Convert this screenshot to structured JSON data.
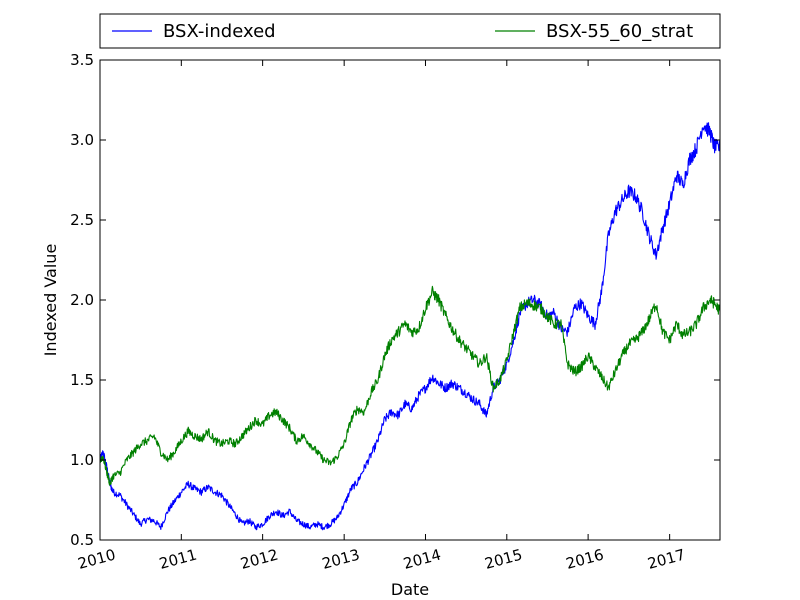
{
  "chart_data": {
    "type": "line",
    "title": "",
    "xlabel": "Date",
    "ylabel": "Indexed Value",
    "xlim": [
      "2010-01-01",
      "2017-08-15"
    ],
    "ylim": [
      0.5,
      3.5
    ],
    "x_ticks": [
      "2010",
      "2011",
      "2012",
      "2013",
      "2014",
      "2015",
      "2016",
      "2017"
    ],
    "y_ticks": [
      "0.5",
      "1.0",
      "1.5",
      "2.0",
      "2.5",
      "3.0",
      "3.5"
    ],
    "grid": false,
    "legend_placement": "top-outside",
    "series": [
      {
        "name": "BSX-indexed",
        "color": "#0000ff",
        "points": [
          [
            "2010-01-01",
            1.0
          ],
          [
            "2010-01-15",
            1.05
          ],
          [
            "2010-02-01",
            0.95
          ],
          [
            "2010-02-15",
            0.85
          ],
          [
            "2010-03-01",
            0.8
          ],
          [
            "2010-04-01",
            0.78
          ],
          [
            "2010-05-01",
            0.72
          ],
          [
            "2010-06-01",
            0.66
          ],
          [
            "2010-07-01",
            0.6
          ],
          [
            "2010-08-01",
            0.63
          ],
          [
            "2010-09-01",
            0.62
          ],
          [
            "2010-10-01",
            0.58
          ],
          [
            "2010-11-01",
            0.68
          ],
          [
            "2010-12-01",
            0.74
          ],
          [
            "2011-01-01",
            0.8
          ],
          [
            "2011-02-01",
            0.85
          ],
          [
            "2011-03-01",
            0.82
          ],
          [
            "2011-04-01",
            0.8
          ],
          [
            "2011-05-01",
            0.83
          ],
          [
            "2011-06-01",
            0.8
          ],
          [
            "2011-07-01",
            0.78
          ],
          [
            "2011-08-01",
            0.72
          ],
          [
            "2011-09-01",
            0.66
          ],
          [
            "2011-10-01",
            0.6
          ],
          [
            "2011-11-01",
            0.62
          ],
          [
            "2011-12-01",
            0.58
          ],
          [
            "2012-01-01",
            0.6
          ],
          [
            "2012-02-01",
            0.65
          ],
          [
            "2012-03-01",
            0.68
          ],
          [
            "2012-04-01",
            0.65
          ],
          [
            "2012-05-01",
            0.68
          ],
          [
            "2012-06-01",
            0.62
          ],
          [
            "2012-07-01",
            0.6
          ],
          [
            "2012-08-01",
            0.58
          ],
          [
            "2012-09-01",
            0.6
          ],
          [
            "2012-10-01",
            0.58
          ],
          [
            "2012-11-01",
            0.6
          ],
          [
            "2012-12-01",
            0.64
          ],
          [
            "2013-01-01",
            0.72
          ],
          [
            "2013-02-01",
            0.82
          ],
          [
            "2013-03-01",
            0.86
          ],
          [
            "2013-04-01",
            0.95
          ],
          [
            "2013-05-01",
            1.03
          ],
          [
            "2013-06-01",
            1.12
          ],
          [
            "2013-07-01",
            1.25
          ],
          [
            "2013-08-01",
            1.3
          ],
          [
            "2013-09-01",
            1.28
          ],
          [
            "2013-10-01",
            1.35
          ],
          [
            "2013-11-01",
            1.32
          ],
          [
            "2013-12-01",
            1.4
          ],
          [
            "2014-01-01",
            1.45
          ],
          [
            "2014-02-01",
            1.52
          ],
          [
            "2014-03-01",
            1.48
          ],
          [
            "2014-04-01",
            1.45
          ],
          [
            "2014-05-01",
            1.48
          ],
          [
            "2014-06-01",
            1.45
          ],
          [
            "2014-07-01",
            1.42
          ],
          [
            "2014-08-01",
            1.38
          ],
          [
            "2014-09-01",
            1.35
          ],
          [
            "2014-10-01",
            1.28
          ],
          [
            "2014-11-01",
            1.45
          ],
          [
            "2014-12-01",
            1.5
          ],
          [
            "2015-01-01",
            1.6
          ],
          [
            "2015-02-01",
            1.75
          ],
          [
            "2015-03-01",
            1.92
          ],
          [
            "2015-04-01",
            1.98
          ],
          [
            "2015-05-01",
            2.0
          ],
          [
            "2015-06-01",
            1.97
          ],
          [
            "2015-07-01",
            1.9
          ],
          [
            "2015-08-01",
            1.92
          ],
          [
            "2015-09-01",
            1.82
          ],
          [
            "2015-10-01",
            1.8
          ],
          [
            "2015-11-01",
            1.95
          ],
          [
            "2015-12-01",
            1.98
          ],
          [
            "2016-01-01",
            1.9
          ],
          [
            "2016-02-01",
            1.85
          ],
          [
            "2016-03-01",
            2.05
          ],
          [
            "2016-04-01",
            2.4
          ],
          [
            "2016-05-01",
            2.55
          ],
          [
            "2016-06-01",
            2.62
          ],
          [
            "2016-07-01",
            2.68
          ],
          [
            "2016-08-01",
            2.65
          ],
          [
            "2016-09-01",
            2.55
          ],
          [
            "2016-10-01",
            2.4
          ],
          [
            "2016-11-01",
            2.28
          ],
          [
            "2016-12-01",
            2.45
          ],
          [
            "2017-01-01",
            2.6
          ],
          [
            "2017-02-01",
            2.78
          ],
          [
            "2017-03-01",
            2.72
          ],
          [
            "2017-04-01",
            2.88
          ],
          [
            "2017-05-01",
            2.95
          ],
          [
            "2017-06-01",
            3.1
          ],
          [
            "2017-07-01",
            3.05
          ],
          [
            "2017-07-20",
            2.96
          ],
          [
            "2017-08-15",
            2.95
          ]
        ]
      },
      {
        "name": "BSX-55_60_strat",
        "color": "#008000",
        "points": [
          [
            "2010-01-01",
            1.0
          ],
          [
            "2010-01-15",
            1.02
          ],
          [
            "2010-02-01",
            0.92
          ],
          [
            "2010-02-15",
            0.85
          ],
          [
            "2010-03-01",
            0.9
          ],
          [
            "2010-04-01",
            0.92
          ],
          [
            "2010-05-01",
            1.0
          ],
          [
            "2010-06-01",
            1.05
          ],
          [
            "2010-07-01",
            1.1
          ],
          [
            "2010-08-01",
            1.12
          ],
          [
            "2010-09-01",
            1.15
          ],
          [
            "2010-10-01",
            1.05
          ],
          [
            "2010-11-01",
            1.0
          ],
          [
            "2010-12-01",
            1.05
          ],
          [
            "2011-01-01",
            1.12
          ],
          [
            "2011-02-01",
            1.18
          ],
          [
            "2011-03-01",
            1.15
          ],
          [
            "2011-04-01",
            1.13
          ],
          [
            "2011-05-01",
            1.18
          ],
          [
            "2011-06-01",
            1.12
          ],
          [
            "2011-07-01",
            1.1
          ],
          [
            "2011-08-01",
            1.12
          ],
          [
            "2011-09-01",
            1.1
          ],
          [
            "2011-10-01",
            1.15
          ],
          [
            "2011-11-01",
            1.2
          ],
          [
            "2011-12-01",
            1.25
          ],
          [
            "2012-01-01",
            1.22
          ],
          [
            "2012-02-01",
            1.28
          ],
          [
            "2012-03-01",
            1.3
          ],
          [
            "2012-04-01",
            1.25
          ],
          [
            "2012-05-01",
            1.2
          ],
          [
            "2012-06-01",
            1.12
          ],
          [
            "2012-07-01",
            1.15
          ],
          [
            "2012-08-01",
            1.1
          ],
          [
            "2012-09-01",
            1.05
          ],
          [
            "2012-10-01",
            1.0
          ],
          [
            "2012-11-01",
            0.98
          ],
          [
            "2012-12-01",
            1.02
          ],
          [
            "2013-01-01",
            1.1
          ],
          [
            "2013-02-01",
            1.25
          ],
          [
            "2013-03-01",
            1.32
          ],
          [
            "2013-04-01",
            1.3
          ],
          [
            "2013-05-01",
            1.42
          ],
          [
            "2013-06-01",
            1.5
          ],
          [
            "2013-07-01",
            1.65
          ],
          [
            "2013-08-01",
            1.75
          ],
          [
            "2013-09-01",
            1.8
          ],
          [
            "2013-10-01",
            1.85
          ],
          [
            "2013-11-01",
            1.8
          ],
          [
            "2013-12-01",
            1.82
          ],
          [
            "2014-01-01",
            1.95
          ],
          [
            "2014-02-01",
            2.05
          ],
          [
            "2014-03-01",
            2.0
          ],
          [
            "2014-04-01",
            1.9
          ],
          [
            "2014-05-01",
            1.82
          ],
          [
            "2014-06-01",
            1.75
          ],
          [
            "2014-07-01",
            1.7
          ],
          [
            "2014-08-01",
            1.65
          ],
          [
            "2014-09-01",
            1.6
          ],
          [
            "2014-10-01",
            1.65
          ],
          [
            "2014-11-01",
            1.45
          ],
          [
            "2014-12-01",
            1.5
          ],
          [
            "2015-01-01",
            1.62
          ],
          [
            "2015-02-01",
            1.8
          ],
          [
            "2015-03-01",
            1.95
          ],
          [
            "2015-04-01",
            1.98
          ],
          [
            "2015-05-01",
            1.97
          ],
          [
            "2015-06-01",
            1.95
          ],
          [
            "2015-07-01",
            1.9
          ],
          [
            "2015-08-01",
            1.85
          ],
          [
            "2015-09-01",
            1.85
          ],
          [
            "2015-10-01",
            1.6
          ],
          [
            "2015-11-01",
            1.55
          ],
          [
            "2015-12-01",
            1.58
          ],
          [
            "2016-01-01",
            1.65
          ],
          [
            "2016-02-01",
            1.58
          ],
          [
            "2016-03-01",
            1.52
          ],
          [
            "2016-04-01",
            1.45
          ],
          [
            "2016-05-01",
            1.55
          ],
          [
            "2016-06-01",
            1.65
          ],
          [
            "2016-07-01",
            1.72
          ],
          [
            "2016-08-01",
            1.75
          ],
          [
            "2016-09-01",
            1.8
          ],
          [
            "2016-10-01",
            1.88
          ],
          [
            "2016-11-01",
            1.98
          ],
          [
            "2016-12-01",
            1.8
          ],
          [
            "2017-01-01",
            1.75
          ],
          [
            "2017-02-01",
            1.85
          ],
          [
            "2017-03-01",
            1.78
          ],
          [
            "2017-04-01",
            1.8
          ],
          [
            "2017-05-01",
            1.85
          ],
          [
            "2017-06-01",
            1.95
          ],
          [
            "2017-07-01",
            2.0
          ],
          [
            "2017-07-20",
            1.98
          ],
          [
            "2017-08-15",
            1.93
          ]
        ]
      }
    ]
  }
}
